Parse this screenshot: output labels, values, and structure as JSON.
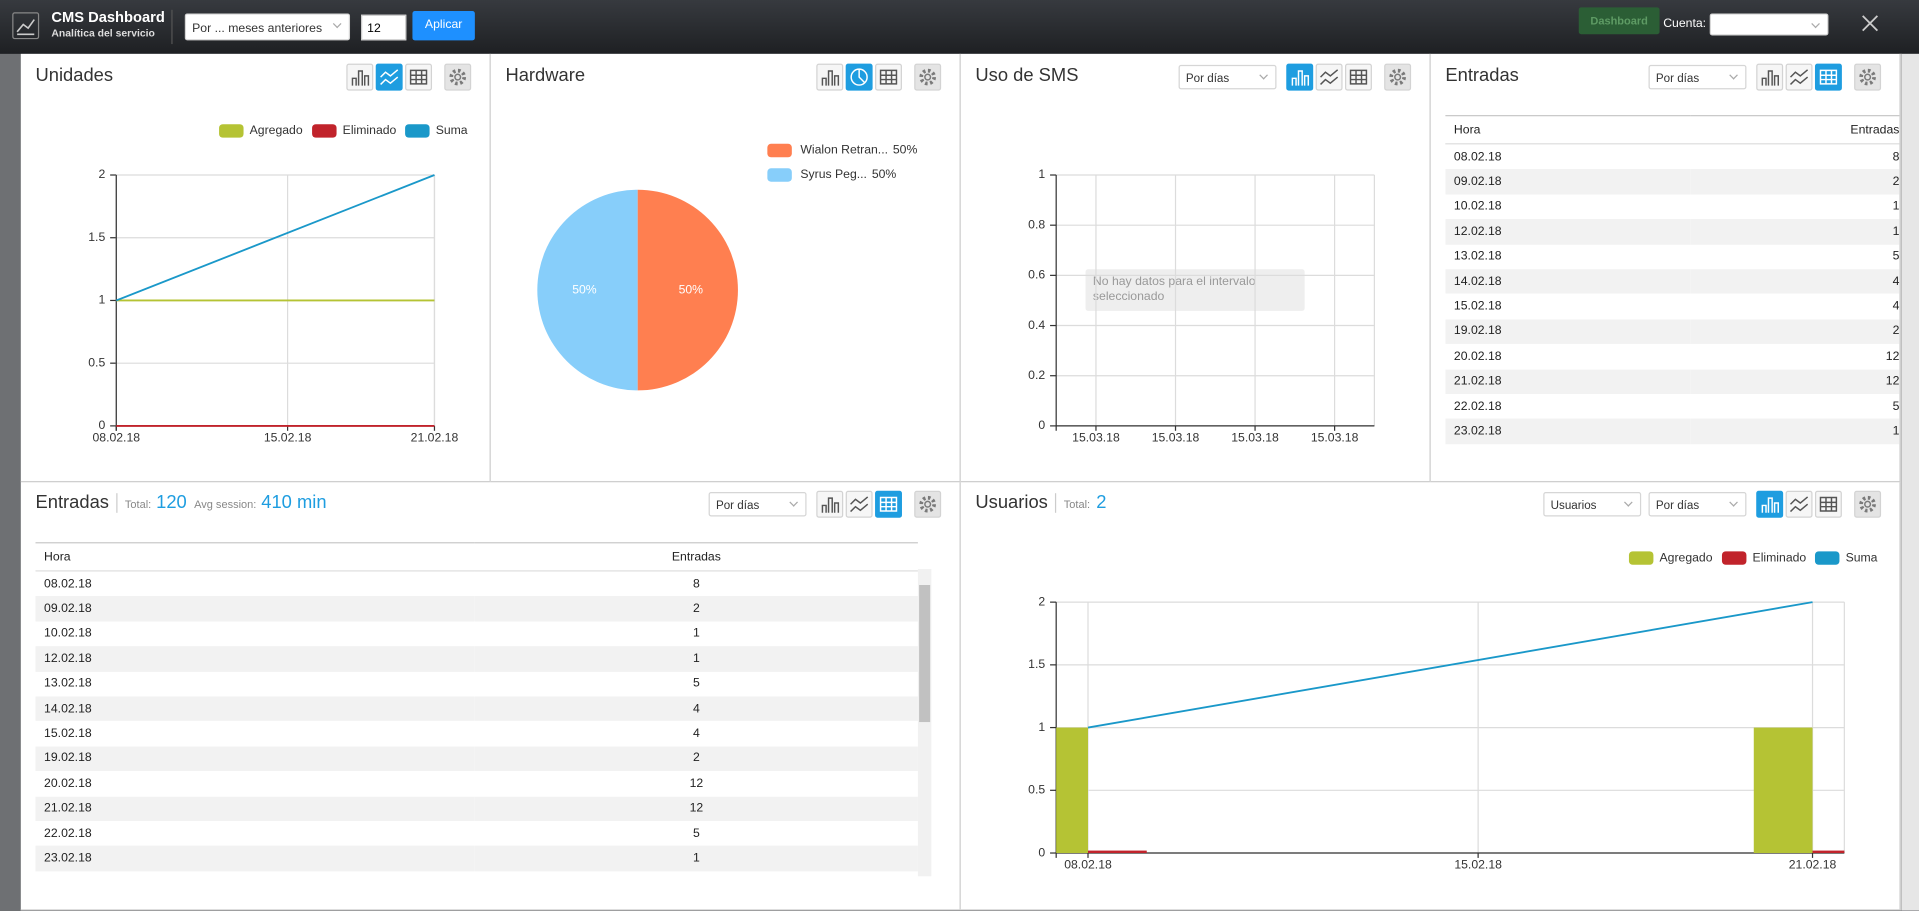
{
  "header": {
    "title": "CMS Dashboard",
    "subtitle": "Analítica del servicio",
    "period": "Por ... meses anteriores",
    "count": "12",
    "apply": "Aplicar",
    "dashboard": "Dashboard",
    "account": "Cuenta:"
  },
  "chart_data": [
    {
      "type": "line",
      "title": "Unidades",
      "x": [
        "08.02.18",
        "21.02.18"
      ],
      "xlim": [
        "08.02.18",
        "21.02.18"
      ],
      "xticks": [
        "08.02.18",
        "15.02.18",
        "21.02.18"
      ],
      "ylim": [
        0,
        2
      ],
      "yticks": [
        0,
        0.5,
        1,
        1.5,
        2
      ],
      "grid": true,
      "legend": "top-right",
      "series": [
        {
          "name": "Agregado",
          "color": "#b5c334",
          "values": [
            1,
            1
          ]
        },
        {
          "name": "Eliminado",
          "color": "#c1232b",
          "values": [
            0,
            0
          ]
        },
        {
          "name": "Suma",
          "color": "#1a98c9",
          "values": [
            1,
            2
          ]
        }
      ]
    },
    {
      "type": "pie",
      "title": "Hardware",
      "categories": [
        "Wialon Retran...",
        "Syrus Peg..."
      ],
      "values": [
        50,
        50
      ],
      "value_labels": [
        "50%",
        "50%"
      ],
      "colors": [
        "#ff7f50",
        "#87cefa"
      ],
      "legend": "top-right"
    },
    {
      "type": "line",
      "title": "Uso de SMS",
      "selects": [
        "Por días"
      ],
      "categories": [
        "15.03.18",
        "15.03.18",
        "15.03.18",
        "15.03.18"
      ],
      "ylim": [
        0,
        1
      ],
      "yticks": [
        0,
        0.2,
        0.4,
        0.6,
        0.8,
        1
      ],
      "grid": true,
      "series": [],
      "annotation": "No hay datos para el intervalo seleccionado"
    },
    {
      "type": "bar",
      "title": "Usuarios",
      "total_label": "Total:",
      "total": 2,
      "selects": [
        "Usuarios",
        "Por días"
      ],
      "x": [
        "08.02.18",
        "21.02.18"
      ],
      "xlim": [
        "08.02.18",
        "21.02.18"
      ],
      "xticks": [
        "08.02.18",
        "15.02.18",
        "21.02.18"
      ],
      "ylim": [
        0,
        2
      ],
      "yticks": [
        0,
        0.5,
        1,
        1.5,
        2
      ],
      "grid": true,
      "legend": "top-right",
      "series": [
        {
          "name": "Agregado",
          "color": "#b5c334",
          "type": "bar",
          "values": [
            1,
            1
          ]
        },
        {
          "name": "Eliminado",
          "color": "#c1232b",
          "type": "bar",
          "values": [
            0,
            0
          ]
        },
        {
          "name": "Suma",
          "color": "#1a98c9",
          "type": "line",
          "values": [
            1,
            2
          ]
        }
      ]
    }
  ],
  "tables": [
    {
      "title": "Entradas",
      "select": "Por días",
      "columns": [
        "Hora",
        "Entradas"
      ],
      "rows": [
        [
          "08.02.18",
          8
        ],
        [
          "09.02.18",
          2
        ],
        [
          "10.02.18",
          1
        ],
        [
          "12.02.18",
          1
        ],
        [
          "13.02.18",
          5
        ],
        [
          "14.02.18",
          4
        ],
        [
          "15.02.18",
          4
        ],
        [
          "19.02.18",
          2
        ],
        [
          "20.02.18",
          12
        ],
        [
          "21.02.18",
          12
        ],
        [
          "22.02.18",
          5
        ],
        [
          "23.02.18",
          1
        ]
      ]
    },
    {
      "title": "Entradas",
      "total_label": "Total:",
      "total": 120,
      "avg_label": "Avg session:",
      "avg": "410 min",
      "select": "Por días",
      "columns": [
        "Hora",
        "Entradas"
      ],
      "rows": [
        [
          "08.02.18",
          8
        ],
        [
          "09.02.18",
          2
        ],
        [
          "10.02.18",
          1
        ],
        [
          "12.02.18",
          1
        ],
        [
          "13.02.18",
          5
        ],
        [
          "14.02.18",
          4
        ],
        [
          "15.02.18",
          4
        ],
        [
          "19.02.18",
          2
        ],
        [
          "20.02.18",
          12
        ],
        [
          "21.02.18",
          12
        ],
        [
          "22.02.18",
          5
        ],
        [
          "23.02.18",
          1
        ]
      ]
    }
  ]
}
